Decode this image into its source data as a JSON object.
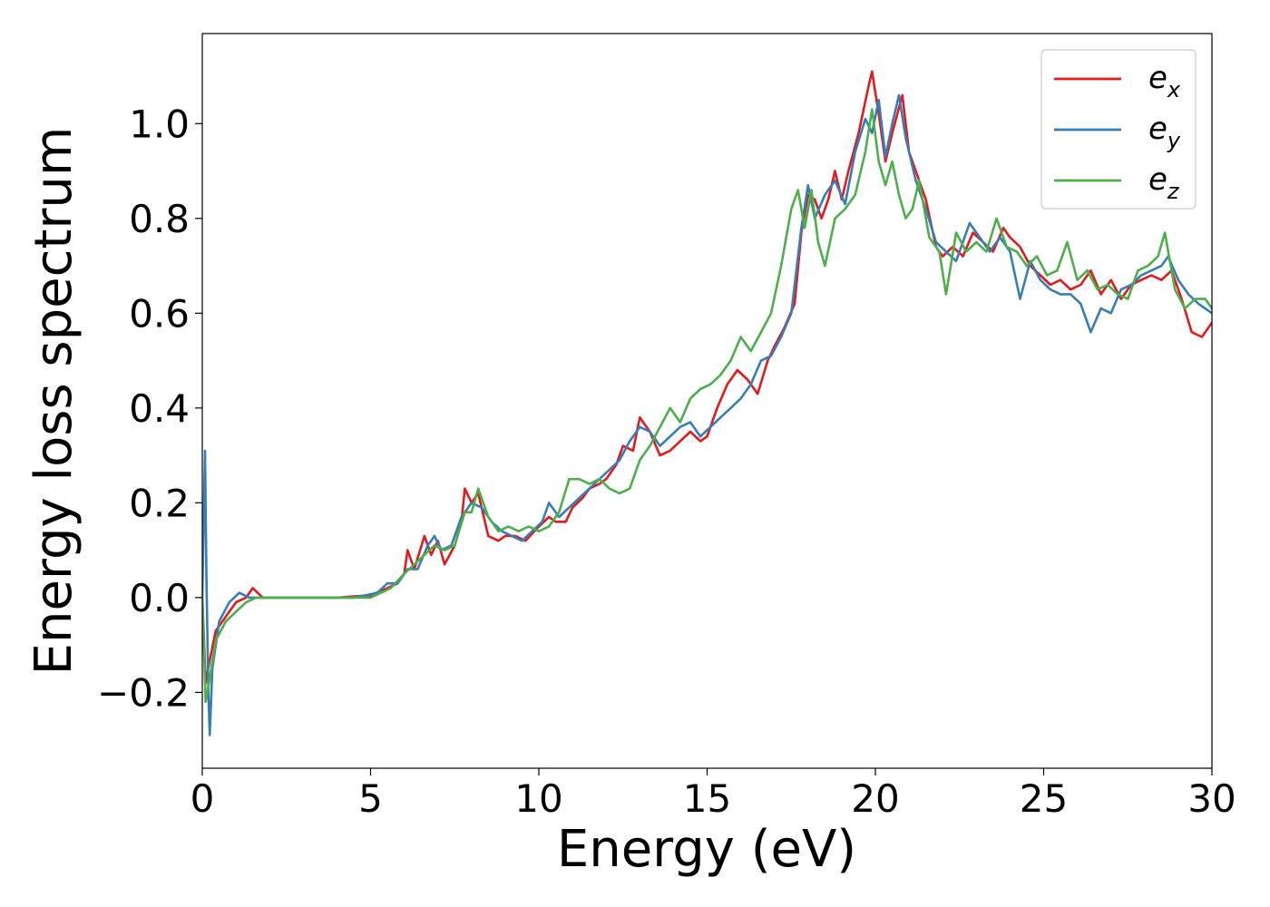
{
  "chart_data": {
    "type": "line",
    "xlabel": "Energy (eV)",
    "ylabel": "Energy loss spectrum",
    "xlim": [
      0,
      30
    ],
    "ylim": [
      -0.36,
      1.19
    ],
    "xticks": [
      0,
      5,
      10,
      15,
      20,
      25,
      30
    ],
    "yticks": [
      -0.2,
      0.0,
      0.2,
      0.4,
      0.6,
      0.8,
      1.0
    ],
    "xtick_labels": [
      "0",
      "5",
      "10",
      "15",
      "20",
      "25",
      "30"
    ],
    "ytick_labels": [
      "−0.2",
      "0.0",
      "0.2",
      "0.4",
      "0.6",
      "0.8",
      "1.0"
    ],
    "grid": false,
    "legend_position": "top-right",
    "series": [
      {
        "name": "e_x",
        "label_base": "e",
        "label_sub": "x",
        "color": "#e41a1c",
        "points": [
          [
            0.0,
            0.0
          ],
          [
            0.1,
            -0.18
          ],
          [
            0.2,
            -0.14
          ],
          [
            0.4,
            -0.07
          ],
          [
            0.7,
            -0.04
          ],
          [
            1.0,
            -0.01
          ],
          [
            1.3,
            0.0
          ],
          [
            1.5,
            0.02
          ],
          [
            1.8,
            0.0
          ],
          [
            2.2,
            0.0
          ],
          [
            3.0,
            0.0
          ],
          [
            4.0,
            0.0
          ],
          [
            5.0,
            0.005
          ],
          [
            5.5,
            0.02
          ],
          [
            5.8,
            0.03
          ],
          [
            6.0,
            0.05
          ],
          [
            6.1,
            0.1
          ],
          [
            6.3,
            0.06
          ],
          [
            6.6,
            0.13
          ],
          [
            6.8,
            0.09
          ],
          [
            7.0,
            0.12
          ],
          [
            7.2,
            0.07
          ],
          [
            7.5,
            0.11
          ],
          [
            7.7,
            0.16
          ],
          [
            7.8,
            0.23
          ],
          [
            8.0,
            0.2
          ],
          [
            8.2,
            0.22
          ],
          [
            8.5,
            0.13
          ],
          [
            8.8,
            0.12
          ],
          [
            9.0,
            0.13
          ],
          [
            9.3,
            0.13
          ],
          [
            9.6,
            0.12
          ],
          [
            10.0,
            0.15
          ],
          [
            10.3,
            0.17
          ],
          [
            10.5,
            0.16
          ],
          [
            10.8,
            0.16
          ],
          [
            11.0,
            0.19
          ],
          [
            11.3,
            0.21
          ],
          [
            11.5,
            0.23
          ],
          [
            11.8,
            0.24
          ],
          [
            12.0,
            0.25
          ],
          [
            12.3,
            0.28
          ],
          [
            12.5,
            0.32
          ],
          [
            12.8,
            0.31
          ],
          [
            13.0,
            0.38
          ],
          [
            13.3,
            0.35
          ],
          [
            13.6,
            0.3
          ],
          [
            13.9,
            0.31
          ],
          [
            14.2,
            0.33
          ],
          [
            14.5,
            0.35
          ],
          [
            14.8,
            0.33
          ],
          [
            15.0,
            0.34
          ],
          [
            15.3,
            0.4
          ],
          [
            15.6,
            0.45
          ],
          [
            15.9,
            0.48
          ],
          [
            16.2,
            0.46
          ],
          [
            16.5,
            0.43
          ],
          [
            16.8,
            0.5
          ],
          [
            17.0,
            0.53
          ],
          [
            17.3,
            0.57
          ],
          [
            17.6,
            0.62
          ],
          [
            17.8,
            0.77
          ],
          [
            18.0,
            0.85
          ],
          [
            18.2,
            0.84
          ],
          [
            18.4,
            0.8
          ],
          [
            18.6,
            0.84
          ],
          [
            18.8,
            0.9
          ],
          [
            19.0,
            0.84
          ],
          [
            19.2,
            0.9
          ],
          [
            19.5,
            0.98
          ],
          [
            19.8,
            1.08
          ],
          [
            19.9,
            1.11
          ],
          [
            20.1,
            1.02
          ],
          [
            20.3,
            0.92
          ],
          [
            20.5,
            0.98
          ],
          [
            20.8,
            1.06
          ],
          [
            21.0,
            0.94
          ],
          [
            21.3,
            0.88
          ],
          [
            21.5,
            0.84
          ],
          [
            21.8,
            0.74
          ],
          [
            22.0,
            0.72
          ],
          [
            22.3,
            0.74
          ],
          [
            22.6,
            0.72
          ],
          [
            22.9,
            0.77
          ],
          [
            23.2,
            0.75
          ],
          [
            23.5,
            0.73
          ],
          [
            23.8,
            0.78
          ],
          [
            24.0,
            0.76
          ],
          [
            24.3,
            0.74
          ],
          [
            24.6,
            0.7
          ],
          [
            24.9,
            0.68
          ],
          [
            25.2,
            0.66
          ],
          [
            25.5,
            0.67
          ],
          [
            25.8,
            0.65
          ],
          [
            26.1,
            0.66
          ],
          [
            26.4,
            0.69
          ],
          [
            26.7,
            0.64
          ],
          [
            27.0,
            0.67
          ],
          [
            27.3,
            0.63
          ],
          [
            27.6,
            0.66
          ],
          [
            27.9,
            0.67
          ],
          [
            28.2,
            0.68
          ],
          [
            28.5,
            0.67
          ],
          [
            28.8,
            0.69
          ],
          [
            29.1,
            0.63
          ],
          [
            29.4,
            0.56
          ],
          [
            29.7,
            0.55
          ],
          [
            30.0,
            0.58
          ]
        ]
      },
      {
        "name": "e_y",
        "label_base": "e",
        "label_sub": "y",
        "color": "#377eb8",
        "points": [
          [
            0.0,
            0.0
          ],
          [
            0.05,
            0.2
          ],
          [
            0.08,
            0.31
          ],
          [
            0.12,
            0.05
          ],
          [
            0.18,
            -0.2
          ],
          [
            0.22,
            -0.29
          ],
          [
            0.3,
            -0.15
          ],
          [
            0.5,
            -0.05
          ],
          [
            0.8,
            -0.01
          ],
          [
            1.1,
            0.01
          ],
          [
            1.4,
            0.0
          ],
          [
            1.8,
            0.0
          ],
          [
            2.5,
            0.0
          ],
          [
            3.5,
            0.0
          ],
          [
            4.5,
            0.0
          ],
          [
            5.2,
            0.01
          ],
          [
            5.5,
            0.03
          ],
          [
            5.8,
            0.03
          ],
          [
            6.1,
            0.06
          ],
          [
            6.4,
            0.06
          ],
          [
            6.7,
            0.11
          ],
          [
            6.9,
            0.13
          ],
          [
            7.1,
            0.1
          ],
          [
            7.4,
            0.11
          ],
          [
            7.7,
            0.17
          ],
          [
            8.0,
            0.2
          ],
          [
            8.3,
            0.19
          ],
          [
            8.6,
            0.16
          ],
          [
            8.9,
            0.14
          ],
          [
            9.2,
            0.13
          ],
          [
            9.5,
            0.12
          ],
          [
            9.8,
            0.14
          ],
          [
            10.1,
            0.16
          ],
          [
            10.3,
            0.2
          ],
          [
            10.6,
            0.17
          ],
          [
            10.9,
            0.19
          ],
          [
            11.2,
            0.21
          ],
          [
            11.5,
            0.23
          ],
          [
            11.8,
            0.25
          ],
          [
            12.1,
            0.27
          ],
          [
            12.4,
            0.29
          ],
          [
            12.7,
            0.33
          ],
          [
            13.0,
            0.36
          ],
          [
            13.3,
            0.35
          ],
          [
            13.6,
            0.32
          ],
          [
            13.9,
            0.34
          ],
          [
            14.2,
            0.36
          ],
          [
            14.5,
            0.37
          ],
          [
            14.8,
            0.34
          ],
          [
            15.1,
            0.36
          ],
          [
            15.4,
            0.38
          ],
          [
            15.7,
            0.4
          ],
          [
            16.0,
            0.42
          ],
          [
            16.3,
            0.45
          ],
          [
            16.6,
            0.5
          ],
          [
            16.9,
            0.51
          ],
          [
            17.2,
            0.55
          ],
          [
            17.5,
            0.6
          ],
          [
            17.8,
            0.78
          ],
          [
            18.0,
            0.87
          ],
          [
            18.2,
            0.8
          ],
          [
            18.5,
            0.85
          ],
          [
            18.8,
            0.88
          ],
          [
            19.1,
            0.83
          ],
          [
            19.4,
            0.94
          ],
          [
            19.7,
            1.01
          ],
          [
            19.9,
            0.98
          ],
          [
            20.1,
            1.05
          ],
          [
            20.3,
            0.93
          ],
          [
            20.5,
            1.0
          ],
          [
            20.7,
            1.06
          ],
          [
            20.9,
            0.97
          ],
          [
            21.2,
            0.88
          ],
          [
            21.5,
            0.82
          ],
          [
            21.8,
            0.75
          ],
          [
            22.1,
            0.73
          ],
          [
            22.4,
            0.71
          ],
          [
            22.8,
            0.79
          ],
          [
            23.1,
            0.76
          ],
          [
            23.4,
            0.73
          ],
          [
            23.7,
            0.76
          ],
          [
            24.0,
            0.73
          ],
          [
            24.3,
            0.63
          ],
          [
            24.6,
            0.71
          ],
          [
            24.9,
            0.67
          ],
          [
            25.2,
            0.65
          ],
          [
            25.5,
            0.64
          ],
          [
            25.8,
            0.64
          ],
          [
            26.1,
            0.62
          ],
          [
            26.4,
            0.56
          ],
          [
            26.7,
            0.61
          ],
          [
            27.0,
            0.6
          ],
          [
            27.3,
            0.65
          ],
          [
            27.6,
            0.66
          ],
          [
            27.9,
            0.68
          ],
          [
            28.2,
            0.69
          ],
          [
            28.5,
            0.7
          ],
          [
            28.7,
            0.72
          ],
          [
            29.0,
            0.67
          ],
          [
            29.3,
            0.64
          ],
          [
            29.6,
            0.62
          ],
          [
            30.0,
            0.6
          ]
        ]
      },
      {
        "name": "e_z",
        "label_base": "e",
        "label_sub": "z",
        "color": "#4daf4a",
        "points": [
          [
            0.0,
            0.0
          ],
          [
            0.1,
            -0.22
          ],
          [
            0.2,
            -0.18
          ],
          [
            0.4,
            -0.09
          ],
          [
            0.7,
            -0.05
          ],
          [
            1.0,
            -0.03
          ],
          [
            1.3,
            -0.01
          ],
          [
            1.6,
            0.0
          ],
          [
            2.0,
            0.0
          ],
          [
            3.0,
            0.0
          ],
          [
            4.0,
            0.0
          ],
          [
            5.0,
            0.0
          ],
          [
            5.6,
            0.02
          ],
          [
            6.0,
            0.05
          ],
          [
            6.3,
            0.07
          ],
          [
            6.6,
            0.09
          ],
          [
            6.9,
            0.11
          ],
          [
            7.2,
            0.1
          ],
          [
            7.5,
            0.11
          ],
          [
            7.8,
            0.18
          ],
          [
            8.0,
            0.18
          ],
          [
            8.2,
            0.23
          ],
          [
            8.5,
            0.17
          ],
          [
            8.8,
            0.14
          ],
          [
            9.1,
            0.15
          ],
          [
            9.4,
            0.14
          ],
          [
            9.7,
            0.15
          ],
          [
            10.0,
            0.14
          ],
          [
            10.3,
            0.15
          ],
          [
            10.6,
            0.18
          ],
          [
            10.9,
            0.25
          ],
          [
            11.2,
            0.25
          ],
          [
            11.5,
            0.24
          ],
          [
            11.8,
            0.25
          ],
          [
            12.1,
            0.23
          ],
          [
            12.4,
            0.22
          ],
          [
            12.7,
            0.23
          ],
          [
            13.0,
            0.29
          ],
          [
            13.3,
            0.32
          ],
          [
            13.6,
            0.36
          ],
          [
            13.9,
            0.4
          ],
          [
            14.2,
            0.37
          ],
          [
            14.5,
            0.42
          ],
          [
            14.8,
            0.44
          ],
          [
            15.1,
            0.45
          ],
          [
            15.4,
            0.47
          ],
          [
            15.7,
            0.5
          ],
          [
            16.0,
            0.55
          ],
          [
            16.3,
            0.52
          ],
          [
            16.6,
            0.56
          ],
          [
            16.9,
            0.6
          ],
          [
            17.2,
            0.7
          ],
          [
            17.5,
            0.82
          ],
          [
            17.7,
            0.86
          ],
          [
            17.9,
            0.78
          ],
          [
            18.1,
            0.86
          ],
          [
            18.3,
            0.75
          ],
          [
            18.5,
            0.7
          ],
          [
            18.8,
            0.8
          ],
          [
            19.1,
            0.82
          ],
          [
            19.4,
            0.85
          ],
          [
            19.7,
            0.94
          ],
          [
            19.9,
            1.03
          ],
          [
            20.1,
            0.92
          ],
          [
            20.3,
            0.87
          ],
          [
            20.5,
            0.92
          ],
          [
            20.7,
            0.85
          ],
          [
            20.9,
            0.8
          ],
          [
            21.1,
            0.82
          ],
          [
            21.3,
            0.88
          ],
          [
            21.6,
            0.76
          ],
          [
            21.9,
            0.73
          ],
          [
            22.1,
            0.64
          ],
          [
            22.4,
            0.77
          ],
          [
            22.7,
            0.73
          ],
          [
            23.0,
            0.75
          ],
          [
            23.3,
            0.73
          ],
          [
            23.6,
            0.8
          ],
          [
            23.9,
            0.74
          ],
          [
            24.2,
            0.73
          ],
          [
            24.5,
            0.7
          ],
          [
            24.8,
            0.72
          ],
          [
            25.1,
            0.68
          ],
          [
            25.4,
            0.69
          ],
          [
            25.7,
            0.75
          ],
          [
            26.0,
            0.67
          ],
          [
            26.3,
            0.69
          ],
          [
            26.6,
            0.65
          ],
          [
            26.9,
            0.66
          ],
          [
            27.2,
            0.64
          ],
          [
            27.5,
            0.63
          ],
          [
            27.8,
            0.69
          ],
          [
            28.1,
            0.7
          ],
          [
            28.4,
            0.72
          ],
          [
            28.6,
            0.77
          ],
          [
            28.9,
            0.65
          ],
          [
            29.2,
            0.61
          ],
          [
            29.5,
            0.63
          ],
          [
            29.8,
            0.63
          ],
          [
            30.0,
            0.61
          ]
        ]
      }
    ]
  }
}
